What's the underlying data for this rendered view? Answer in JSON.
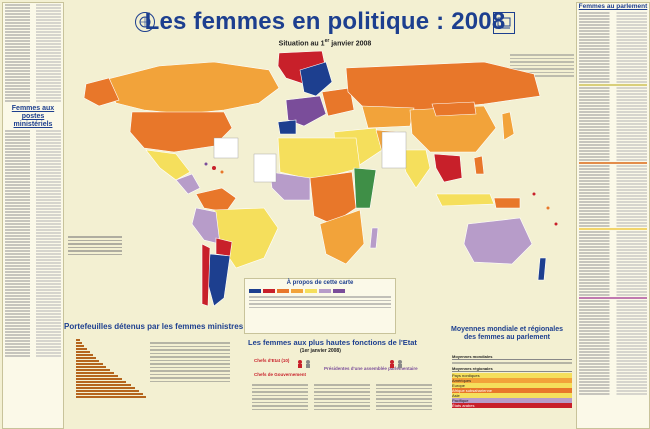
{
  "header": {
    "title": "Les femmes en politique : 2008",
    "subtitle_pre": "Situation au 1",
    "subtitle_sup": "er",
    "subtitle_post": " janvier 2008"
  },
  "left_panel": {
    "title_line1": "Femmes aux",
    "title_line2": "postes ministériels"
  },
  "right_panel": {
    "title": "Femmes au parlement"
  },
  "bottom": {
    "portfolios_title": "Portefeuilles détenus par les femmes ministres",
    "highest_title": "Les femmes aux plus hautes fonctions de l'Etat",
    "highest_sub": "(1er janvier 2008)",
    "averages_title_line1": "Moyennes mondiale et régionales",
    "averages_title_line2": "des femmes au parlement",
    "about_map": "À propos de cette carte",
    "chefs_etat": "Chefs d'Etat (10)",
    "chefs_gouv": "Chefs de Gouvernement",
    "presidentes": "Présidentes d'une assemblée parlementaire",
    "moyennes_mondiales": "Moyennes mondiales",
    "moyennes_regionales": "Moyennes régionales",
    "regions": [
      "Pays nordiques",
      "Amériques",
      "Europe",
      "Afrique subsaharienne",
      "Asie",
      "Pacifique",
      "États arabes"
    ]
  },
  "colors": {
    "title": "#1d3f8f",
    "ocean": "#f3f0d2",
    "navy": "#1d3f8f",
    "red": "#c8202a",
    "orange": "#e8772a",
    "amber": "#f2a33a",
    "yellow": "#f5df5c",
    "lavender": "#b79cc9",
    "purple": "#7a4d9a",
    "green": "#3f8f47"
  }
}
